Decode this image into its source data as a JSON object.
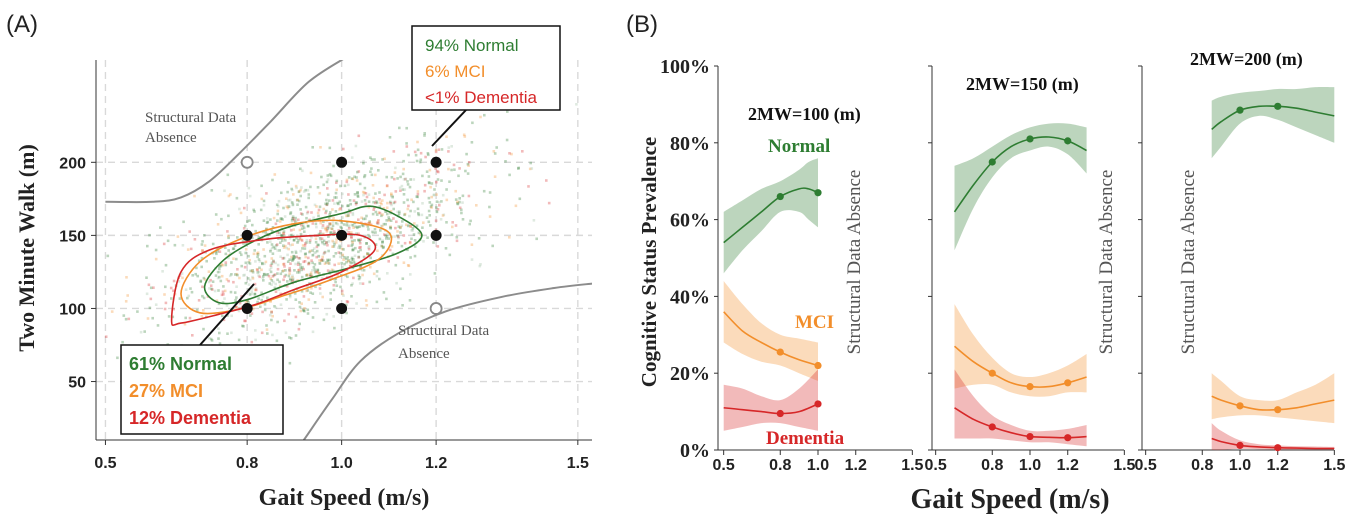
{
  "panel_a": {
    "label": "(A)",
    "xlabel": "Gait Speed (m/s)",
    "ylabel": "Two Minute Walk (m)",
    "region_upper": [
      "Structural Data",
      "Absence"
    ],
    "region_lower": [
      "Structural Data",
      "Absence"
    ],
    "box_top": {
      "normal": "94% Normal",
      "mci": "6% MCI",
      "dementia": "<1% Dementia"
    },
    "box_bottom": {
      "normal": "61% Normal",
      "mci": "27% MCI",
      "dementia": "12% Dementia"
    }
  },
  "panel_b": {
    "label": "(B)",
    "xlabel": "Gait Speed (m/s)",
    "ylabel": "Cognitive Status Prevalence",
    "series_names": {
      "normal": "Normal",
      "mci": "MCI",
      "dementia": "Dementia"
    },
    "absence_label": "Structural Data Absence",
    "subplots": [
      {
        "title": "2MW=100 (m)"
      },
      {
        "title": "2MW=150 (m)"
      },
      {
        "title": "2MW=200 (m)"
      }
    ]
  },
  "colors": {
    "normal": "#2e7d32",
    "mci": "#f28e2b",
    "dementia": "#d62728",
    "boundary": "#8c8c8c",
    "grid": "#d9d9d9"
  },
  "chart_data": [
    {
      "type": "scatter",
      "title": "",
      "xlabel": "Gait Speed (m/s)",
      "ylabel": "Two Minute Walk (m)",
      "x_ticks": [
        "0.5",
        "0.8",
        "1.0",
        "1.2",
        "1.5"
      ],
      "y_ticks": [
        "50",
        "100",
        "150",
        "200"
      ],
      "xlim": [
        0.48,
        1.53
      ],
      "ylim": [
        10,
        270
      ],
      "grid": "dashed",
      "query_points_filled": [
        [
          0.8,
          200
        ],
        [
          1.0,
          200
        ],
        [
          1.2,
          200
        ],
        [
          0.8,
          150
        ],
        [
          1.0,
          150
        ],
        [
          1.2,
          150
        ],
        [
          0.8,
          100
        ],
        [
          1.0,
          100
        ]
      ],
      "query_points_open": [
        [
          0.8,
          200
        ],
        [
          1.2,
          100
        ]
      ],
      "contours": {
        "normal": [
          [
            0.71,
            115
          ],
          [
            0.75,
            133
          ],
          [
            0.82,
            147
          ],
          [
            0.9,
            157
          ],
          [
            1.0,
            165
          ],
          [
            1.06,
            170
          ],
          [
            1.12,
            163
          ],
          [
            1.17,
            150
          ],
          [
            1.12,
            138
          ],
          [
            1.02,
            128
          ],
          [
            0.9,
            118
          ],
          [
            0.8,
            106
          ],
          [
            0.74,
            104
          ]
        ],
        "mci": [
          [
            0.66,
            110
          ],
          [
            0.7,
            132
          ],
          [
            0.79,
            148
          ],
          [
            0.9,
            158
          ],
          [
            1.0,
            160
          ],
          [
            1.1,
            152
          ],
          [
            1.08,
            134
          ],
          [
            0.98,
            120
          ],
          [
            0.87,
            108
          ],
          [
            0.79,
            100
          ],
          [
            0.7,
            97
          ]
        ],
        "dementia": [
          [
            0.64,
            92
          ],
          [
            0.66,
            125
          ],
          [
            0.72,
            140
          ],
          [
            0.83,
            147
          ],
          [
            0.95,
            150
          ],
          [
            1.04,
            150
          ],
          [
            1.07,
            140
          ],
          [
            1.0,
            125
          ],
          [
            0.9,
            113
          ],
          [
            0.82,
            103
          ],
          [
            0.74,
            96
          ],
          [
            0.66,
            90
          ]
        ]
      },
      "boundary_upper": [
        [
          0.5,
          173
        ],
        [
          0.6,
          173
        ],
        [
          0.66,
          176
        ],
        [
          0.72,
          187
        ],
        [
          0.78,
          205
        ],
        [
          0.85,
          228
        ],
        [
          0.93,
          255
        ],
        [
          1.01,
          272
        ]
      ],
      "boundary_lower": [
        [
          0.92,
          10
        ],
        [
          0.98,
          38
        ],
        [
          1.04,
          64
        ],
        [
          1.12,
          83
        ],
        [
          1.22,
          98
        ],
        [
          1.34,
          108
        ],
        [
          1.45,
          114
        ],
        [
          1.53,
          117
        ]
      ],
      "legend": "none"
    },
    {
      "type": "line",
      "title": "2MW=100 (m)",
      "xlabel": "Gait Speed (m/s)",
      "ylabel": "Cognitive Status Prevalence",
      "x_ticks": [
        "0.5",
        "0.8",
        "1.0",
        "1.2",
        "1.5"
      ],
      "y_ticks": [
        "0%",
        "20%",
        "40%",
        "60%",
        "80%",
        "100%"
      ],
      "xlim": [
        0.47,
        1.53
      ],
      "ylim": [
        0,
        1
      ],
      "series": [
        {
          "name": "Normal",
          "x": [
            0.5,
            0.6,
            0.7,
            0.8,
            0.9,
            0.95,
            1.0
          ],
          "y": [
            0.54,
            0.58,
            0.62,
            0.66,
            0.68,
            0.68,
            0.67
          ],
          "lower": [
            0.46,
            0.52,
            0.57,
            0.62,
            0.62,
            0.6,
            0.58
          ],
          "upper": [
            0.62,
            0.65,
            0.68,
            0.7,
            0.73,
            0.75,
            0.76
          ],
          "markers": [
            [
              0.8,
              0.66
            ],
            [
              1.0,
              0.67
            ]
          ]
        },
        {
          "name": "MCI",
          "x": [
            0.5,
            0.6,
            0.7,
            0.8,
            0.9,
            1.0
          ],
          "y": [
            0.36,
            0.31,
            0.28,
            0.255,
            0.235,
            0.22
          ],
          "lower": [
            0.28,
            0.25,
            0.23,
            0.22,
            0.2,
            0.18
          ],
          "upper": [
            0.44,
            0.38,
            0.33,
            0.3,
            0.29,
            0.28
          ],
          "markers": [
            [
              0.8,
              0.255
            ],
            [
              1.0,
              0.22
            ]
          ]
        },
        {
          "name": "Dementia",
          "x": [
            0.5,
            0.6,
            0.7,
            0.8,
            0.9,
            1.0
          ],
          "y": [
            0.11,
            0.105,
            0.1,
            0.095,
            0.1,
            0.12
          ],
          "lower": [
            0.05,
            0.06,
            0.07,
            0.07,
            0.06,
            0.05
          ],
          "upper": [
            0.17,
            0.16,
            0.14,
            0.13,
            0.16,
            0.21
          ],
          "markers": [
            [
              0.8,
              0.095
            ],
            [
              1.0,
              0.12
            ]
          ]
        }
      ],
      "legend": "inline labels"
    },
    {
      "type": "line",
      "title": "2MW=150 (m)",
      "xlabel": "Gait Speed (m/s)",
      "ylabel": "",
      "x_ticks": [
        "0.5",
        "0.8",
        "1.0",
        "1.2",
        "1.5"
      ],
      "y_ticks": [],
      "xlim": [
        0.47,
        1.53
      ],
      "ylim": [
        0,
        1
      ],
      "series": [
        {
          "name": "Normal",
          "x": [
            0.6,
            0.7,
            0.8,
            0.9,
            1.0,
            1.1,
            1.2,
            1.3
          ],
          "y": [
            0.62,
            0.69,
            0.75,
            0.79,
            0.81,
            0.815,
            0.805,
            0.78
          ],
          "lower": [
            0.52,
            0.63,
            0.71,
            0.76,
            0.78,
            0.79,
            0.77,
            0.72
          ],
          "upper": [
            0.74,
            0.76,
            0.79,
            0.82,
            0.84,
            0.85,
            0.85,
            0.84
          ],
          "markers": [
            [
              0.8,
              0.75
            ],
            [
              1.0,
              0.81
            ],
            [
              1.2,
              0.805
            ]
          ]
        },
        {
          "name": "MCI",
          "x": [
            0.6,
            0.7,
            0.8,
            0.9,
            1.0,
            1.1,
            1.2,
            1.3
          ],
          "y": [
            0.27,
            0.23,
            0.2,
            0.175,
            0.165,
            0.165,
            0.175,
            0.19
          ],
          "lower": [
            0.16,
            0.17,
            0.17,
            0.15,
            0.14,
            0.14,
            0.15,
            0.15
          ],
          "upper": [
            0.38,
            0.3,
            0.24,
            0.2,
            0.19,
            0.2,
            0.22,
            0.25
          ],
          "markers": [
            [
              0.8,
              0.2
            ],
            [
              1.0,
              0.165
            ],
            [
              1.2,
              0.175
            ]
          ]
        },
        {
          "name": "Dementia",
          "x": [
            0.6,
            0.7,
            0.8,
            0.9,
            1.0,
            1.1,
            1.2,
            1.3
          ],
          "y": [
            0.11,
            0.08,
            0.06,
            0.045,
            0.035,
            0.033,
            0.032,
            0.035
          ],
          "lower": [
            0.03,
            0.03,
            0.03,
            0.025,
            0.02,
            0.02,
            0.015,
            0.01
          ],
          "upper": [
            0.21,
            0.14,
            0.09,
            0.065,
            0.05,
            0.05,
            0.055,
            0.065
          ],
          "markers": [
            [
              0.8,
              0.06
            ],
            [
              1.0,
              0.035
            ],
            [
              1.2,
              0.032
            ]
          ]
        }
      ],
      "legend": "none"
    },
    {
      "type": "line",
      "title": "2MW=200 (m)",
      "xlabel": "Gait Speed (m/s)",
      "ylabel": "",
      "x_ticks": [
        "0.5",
        "0.8",
        "1.0",
        "1.2",
        "1.5"
      ],
      "y_ticks": [],
      "xlim": [
        0.47,
        1.53
      ],
      "ylim": [
        0,
        1
      ],
      "series": [
        {
          "name": "Normal",
          "x": [
            0.85,
            0.9,
            1.0,
            1.1,
            1.2,
            1.3,
            1.4,
            1.5
          ],
          "y": [
            0.835,
            0.855,
            0.885,
            0.895,
            0.895,
            0.89,
            0.88,
            0.87
          ],
          "lower": [
            0.76,
            0.79,
            0.85,
            0.87,
            0.86,
            0.84,
            0.82,
            0.8
          ],
          "upper": [
            0.91,
            0.92,
            0.93,
            0.935,
            0.94,
            0.94,
            0.945,
            0.945
          ],
          "markers": [
            [
              1.0,
              0.885
            ],
            [
              1.2,
              0.895
            ]
          ]
        },
        {
          "name": "MCI",
          "x": [
            0.85,
            0.9,
            1.0,
            1.1,
            1.2,
            1.3,
            1.4,
            1.5
          ],
          "y": [
            0.14,
            0.13,
            0.115,
            0.105,
            0.105,
            0.11,
            0.12,
            0.13
          ],
          "lower": [
            0.08,
            0.085,
            0.09,
            0.09,
            0.085,
            0.08,
            0.075,
            0.07
          ],
          "upper": [
            0.2,
            0.18,
            0.14,
            0.13,
            0.13,
            0.15,
            0.17,
            0.2
          ],
          "markers": [
            [
              1.0,
              0.115
            ],
            [
              1.2,
              0.105
            ]
          ]
        },
        {
          "name": "Dementia",
          "x": [
            0.85,
            0.9,
            1.0,
            1.1,
            1.2,
            1.3,
            1.4,
            1.5
          ],
          "y": [
            0.03,
            0.022,
            0.012,
            0.008,
            0.006,
            0.005,
            0.004,
            0.004
          ],
          "lower": [
            0.0,
            0.0,
            0.003,
            0.002,
            0.001,
            0.001,
            0.001,
            0.001
          ],
          "upper": [
            0.07,
            0.05,
            0.025,
            0.015,
            0.012,
            0.01,
            0.009,
            0.008
          ],
          "markers": [
            [
              1.0,
              0.012
            ],
            [
              1.2,
              0.006
            ]
          ]
        }
      ],
      "legend": "none"
    }
  ]
}
